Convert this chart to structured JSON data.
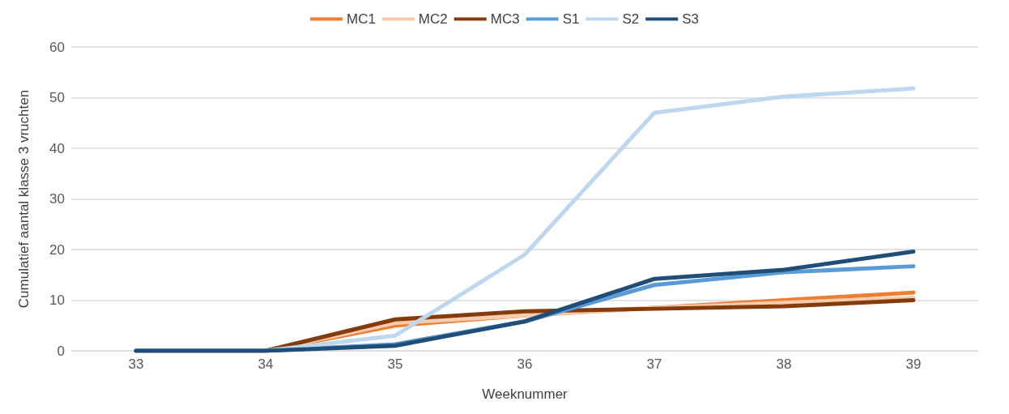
{
  "chart_data": {
    "type": "line",
    "xlabel": "Weeknummer",
    "ylabel": "Cumulatief aantal klasse 3 vruchten",
    "categories": [
      "33",
      "34",
      "35",
      "36",
      "37",
      "38",
      "39"
    ],
    "ylim": [
      0,
      60
    ],
    "yticks": [
      0,
      10,
      20,
      30,
      40,
      50,
      60
    ],
    "grid": "y",
    "legend": "top",
    "marker": "none",
    "line_style": "solid",
    "series": [
      {
        "name": "MC1",
        "color": "#ed7d31",
        "values": [
          0,
          0,
          5,
          7,
          8.5,
          10,
          11.5
        ]
      },
      {
        "name": "MC2",
        "color": "#f8cbad",
        "values": [
          0,
          0,
          5.5,
          7,
          8.5,
          9.5,
          10.5
        ]
      },
      {
        "name": "MC3",
        "color": "#843c0c",
        "values": [
          0,
          0,
          6.2,
          7.8,
          8.3,
          8.8,
          10
        ]
      },
      {
        "name": "S1",
        "color": "#5b9bd5",
        "values": [
          0,
          0,
          1.3,
          5.8,
          13,
          15.5,
          16.7
        ]
      },
      {
        "name": "S2",
        "color": "#bdd7ee",
        "values": [
          0,
          0,
          3,
          19,
          47,
          50.2,
          51.8
        ]
      },
      {
        "name": "S3",
        "color": "#1f4e79",
        "values": [
          0,
          0,
          1,
          5.8,
          14.2,
          16,
          19.6
        ]
      }
    ]
  }
}
